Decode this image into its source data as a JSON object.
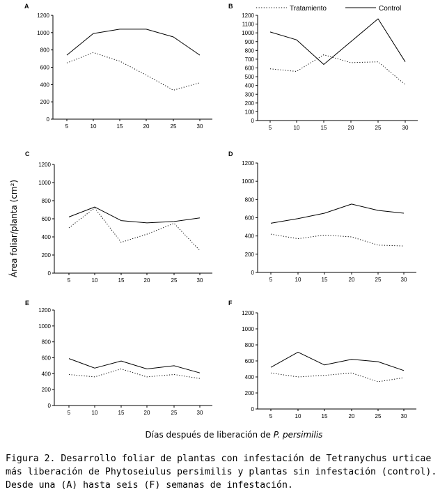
{
  "figure": {
    "ylabel": "Área foliar/planta (cm²)",
    "xlabel_main": "Días después de liberación de ",
    "xlabel_species": "P. persimilis",
    "caption": "Figura 2. Desarrollo foliar de plantas con infestación de Tetranychus urticae más liberación de Phytoseiulus persimilis y plantas sin infestación (control). Desde una (A) hasta seis (F) semanas de infestación."
  },
  "legend": {
    "items": [
      {
        "label": "Tratamiento",
        "style": "dotted"
      },
      {
        "label": "Control",
        "style": "solid"
      }
    ],
    "placement": "top of panel B"
  },
  "colors": {
    "lines": "#000000",
    "axes": "#000000",
    "background": "#ffffff"
  },
  "chart_data": [
    {
      "panel": "A",
      "type": "line",
      "grid": false,
      "x": [
        5,
        10,
        15,
        20,
        25,
        30
      ],
      "ylim": [
        0,
        1200
      ],
      "yticks": [
        0,
        200,
        400,
        600,
        800,
        1000,
        1200
      ],
      "series": [
        {
          "name": "Tratamiento",
          "values": [
            650,
            770,
            670,
            510,
            335,
            420
          ]
        },
        {
          "name": "Control",
          "values": [
            740,
            990,
            1040,
            1040,
            950,
            740
          ]
        }
      ]
    },
    {
      "panel": "B",
      "type": "line",
      "grid": false,
      "x": [
        5,
        10,
        15,
        20,
        25,
        30
      ],
      "ylim": [
        0,
        1200
      ],
      "yticks": [
        0,
        100,
        200,
        300,
        400,
        500,
        600,
        700,
        800,
        900,
        1000,
        1100,
        1200
      ],
      "series": [
        {
          "name": "Tratamiento",
          "values": [
            590,
            560,
            750,
            660,
            670,
            410
          ]
        },
        {
          "name": "Control",
          "values": [
            1010,
            920,
            640,
            900,
            1160,
            670
          ]
        }
      ]
    },
    {
      "panel": "C",
      "type": "line",
      "grid": false,
      "x": [
        5,
        10,
        15,
        20,
        25,
        30
      ],
      "ylim": [
        0,
        1200
      ],
      "yticks": [
        0,
        200,
        400,
        600,
        800,
        1000,
        1200
      ],
      "series": [
        {
          "name": "Tratamiento",
          "values": [
            500,
            720,
            340,
            430,
            550,
            250
          ]
        },
        {
          "name": "Control",
          "values": [
            620,
            730,
            580,
            555,
            570,
            610
          ]
        }
      ]
    },
    {
      "panel": "D",
      "type": "line",
      "grid": false,
      "x": [
        5,
        10,
        15,
        20,
        25,
        30
      ],
      "ylim": [
        0,
        1200
      ],
      "yticks": [
        0,
        200,
        400,
        600,
        800,
        1000,
        1200
      ],
      "series": [
        {
          "name": "Tratamiento",
          "values": [
            420,
            370,
            410,
            390,
            300,
            290
          ]
        },
        {
          "name": "Control",
          "values": [
            540,
            590,
            650,
            750,
            680,
            650
          ]
        }
      ]
    },
    {
      "panel": "E",
      "type": "line",
      "grid": false,
      "x": [
        5,
        10,
        15,
        20,
        25,
        30
      ],
      "ylim": [
        0,
        1200
      ],
      "yticks": [
        0,
        200,
        400,
        600,
        800,
        1000,
        1200
      ],
      "series": [
        {
          "name": "Tratamiento",
          "values": [
            390,
            360,
            460,
            360,
            390,
            340
          ]
        },
        {
          "name": "Control",
          "values": [
            590,
            470,
            560,
            460,
            500,
            410
          ]
        }
      ]
    },
    {
      "panel": "F",
      "type": "line",
      "grid": false,
      "x": [
        5,
        10,
        15,
        20,
        25,
        30
      ],
      "ylim": [
        0,
        1200
      ],
      "yticks": [
        0,
        200,
        400,
        600,
        800,
        1000,
        1200
      ],
      "series": [
        {
          "name": "Tratamiento",
          "values": [
            450,
            400,
            420,
            450,
            340,
            390
          ]
        },
        {
          "name": "Control",
          "values": [
            520,
            710,
            550,
            620,
            590,
            480
          ]
        }
      ]
    }
  ]
}
